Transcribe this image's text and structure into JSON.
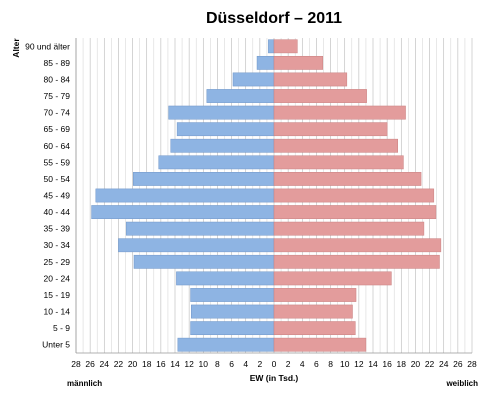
{
  "chart_data": {
    "type": "bar",
    "orientation": "horizontal",
    "layout": "population-pyramid",
    "title": "Düsseldorf – 2011",
    "ylabel": "Alter",
    "xlabel": "EW (in Tsd.)",
    "left_label": "männlich",
    "right_label": "weiblich",
    "xlim": [
      -28,
      28
    ],
    "xticks": [
      28,
      26,
      24,
      22,
      20,
      18,
      16,
      14,
      12,
      10,
      8,
      6,
      4,
      2,
      0,
      2,
      4,
      6,
      8,
      10,
      12,
      14,
      16,
      18,
      20,
      22,
      24,
      26,
      28
    ],
    "categories": [
      "90 und älter",
      "85 - 89",
      "80 - 84",
      "75 - 79",
      "70 - 74",
      "65 - 69",
      "60 - 64",
      "55 - 59",
      "50 - 54",
      "45 - 49",
      "40 - 44",
      "35 - 39",
      "30 - 34",
      "25 - 29",
      "20 - 24",
      "15 - 19",
      "10 - 14",
      "5 - 9",
      "Unter 5"
    ],
    "series": [
      {
        "values": [
          0.8,
          2.4,
          5.8,
          9.5,
          14.9,
          13.7,
          14.6,
          16.3,
          19.9,
          25.2,
          25.8,
          20.9,
          22.0,
          19.8,
          13.8,
          11.8,
          11.7,
          11.8,
          13.6
        ],
        "color": "#8eb4e3"
      },
      {
        "values": [
          3.3,
          6.9,
          10.3,
          13.1,
          18.6,
          16.0,
          17.5,
          18.3,
          20.8,
          22.6,
          22.9,
          21.2,
          23.6,
          23.4,
          16.6,
          11.6,
          11.1,
          11.5,
          13.0
        ],
        "color": "#e39c9c"
      }
    ],
    "grid": true
  }
}
